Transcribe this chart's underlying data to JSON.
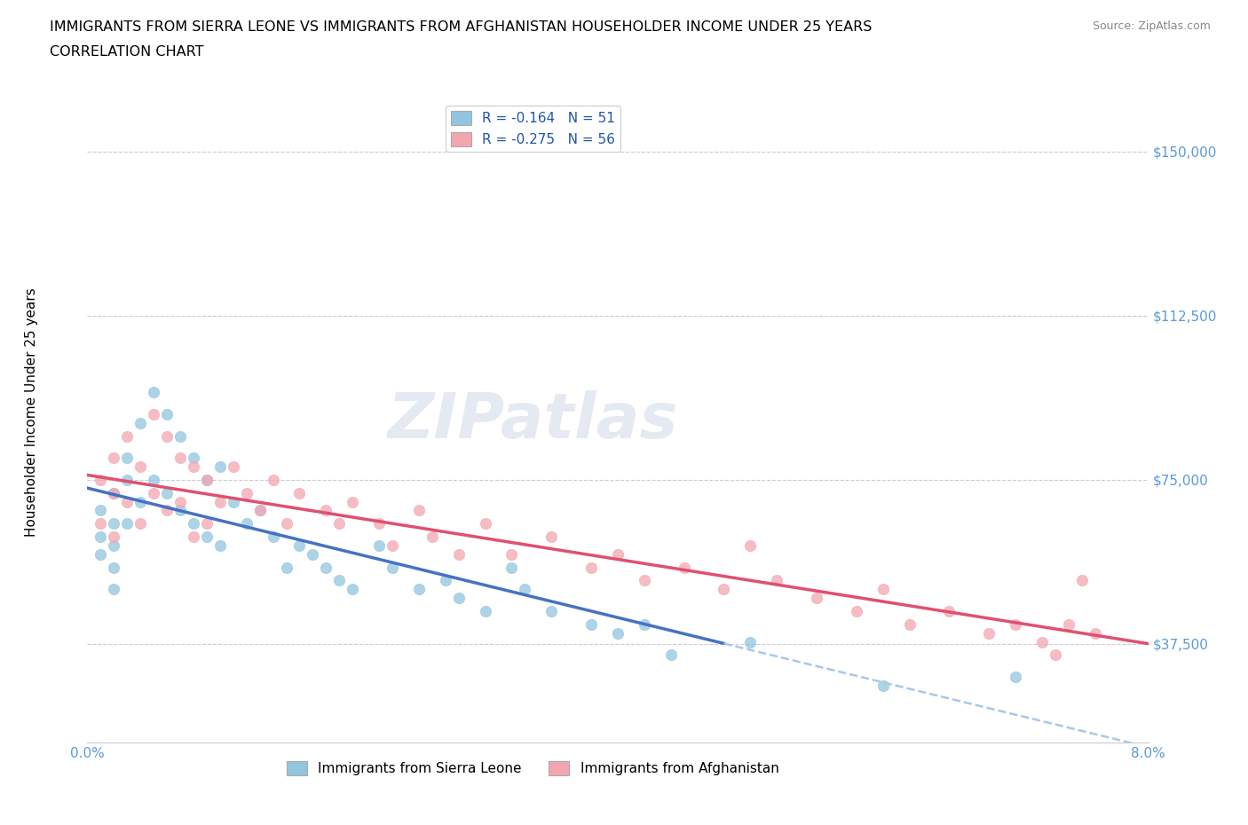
{
  "title_line1": "IMMIGRANTS FROM SIERRA LEONE VS IMMIGRANTS FROM AFGHANISTAN HOUSEHOLDER INCOME UNDER 25 YEARS",
  "title_line2": "CORRELATION CHART",
  "source_text": "Source: ZipAtlas.com",
  "ylabel": "Householder Income Under 25 years",
  "xmin": 0.0,
  "xmax": 0.08,
  "ymin": 15000,
  "ymax": 162000,
  "yticks": [
    37500,
    75000,
    112500,
    150000
  ],
  "ytick_labels": [
    "$37,500",
    "$75,000",
    "$112,500",
    "$150,000"
  ],
  "xticks": [
    0.0,
    0.01,
    0.02,
    0.03,
    0.04,
    0.05,
    0.06,
    0.07,
    0.08
  ],
  "xtick_labels": [
    "0.0%",
    "",
    "",
    "",
    "",
    "",
    "",
    "",
    "8.0%"
  ],
  "color_sierra": "#92C5DE",
  "color_afghanistan": "#F4A6B0",
  "color_sierra_line": "#4472C4",
  "color_afghanistan_line": "#E05070",
  "color_sierra_dash": "#A8C8E8",
  "watermark": "ZIPatlas",
  "sl_R": -0.164,
  "sl_N": 51,
  "af_R": -0.275,
  "af_N": 56,
  "sierra_leone_x": [
    0.001,
    0.001,
    0.001,
    0.002,
    0.002,
    0.002,
    0.002,
    0.002,
    0.003,
    0.003,
    0.003,
    0.004,
    0.004,
    0.005,
    0.005,
    0.006,
    0.006,
    0.007,
    0.007,
    0.008,
    0.008,
    0.009,
    0.009,
    0.01,
    0.01,
    0.011,
    0.012,
    0.013,
    0.014,
    0.015,
    0.016,
    0.017,
    0.018,
    0.019,
    0.02,
    0.022,
    0.023,
    0.025,
    0.027,
    0.028,
    0.03,
    0.032,
    0.033,
    0.035,
    0.038,
    0.04,
    0.042,
    0.044,
    0.05,
    0.06,
    0.07
  ],
  "sierra_leone_y": [
    68000,
    62000,
    58000,
    72000,
    65000,
    60000,
    55000,
    50000,
    80000,
    75000,
    65000,
    88000,
    70000,
    95000,
    75000,
    90000,
    72000,
    85000,
    68000,
    80000,
    65000,
    75000,
    62000,
    78000,
    60000,
    70000,
    65000,
    68000,
    62000,
    55000,
    60000,
    58000,
    55000,
    52000,
    50000,
    60000,
    55000,
    50000,
    52000,
    48000,
    45000,
    55000,
    50000,
    45000,
    42000,
    40000,
    42000,
    35000,
    38000,
    28000,
    30000
  ],
  "afghanistan_x": [
    0.001,
    0.001,
    0.002,
    0.002,
    0.002,
    0.003,
    0.003,
    0.004,
    0.004,
    0.005,
    0.005,
    0.006,
    0.006,
    0.007,
    0.007,
    0.008,
    0.008,
    0.009,
    0.009,
    0.01,
    0.011,
    0.012,
    0.013,
    0.014,
    0.015,
    0.016,
    0.018,
    0.019,
    0.02,
    0.022,
    0.023,
    0.025,
    0.026,
    0.028,
    0.03,
    0.032,
    0.035,
    0.038,
    0.04,
    0.042,
    0.045,
    0.048,
    0.05,
    0.052,
    0.055,
    0.058,
    0.06,
    0.062,
    0.065,
    0.068,
    0.07,
    0.072,
    0.073,
    0.074,
    0.075,
    0.076
  ],
  "afghanistan_y": [
    75000,
    65000,
    80000,
    72000,
    62000,
    85000,
    70000,
    78000,
    65000,
    90000,
    72000,
    85000,
    68000,
    80000,
    70000,
    78000,
    62000,
    75000,
    65000,
    70000,
    78000,
    72000,
    68000,
    75000,
    65000,
    72000,
    68000,
    65000,
    70000,
    65000,
    60000,
    68000,
    62000,
    58000,
    65000,
    58000,
    62000,
    55000,
    58000,
    52000,
    55000,
    50000,
    60000,
    52000,
    48000,
    45000,
    50000,
    42000,
    45000,
    40000,
    42000,
    38000,
    35000,
    42000,
    52000,
    40000
  ]
}
